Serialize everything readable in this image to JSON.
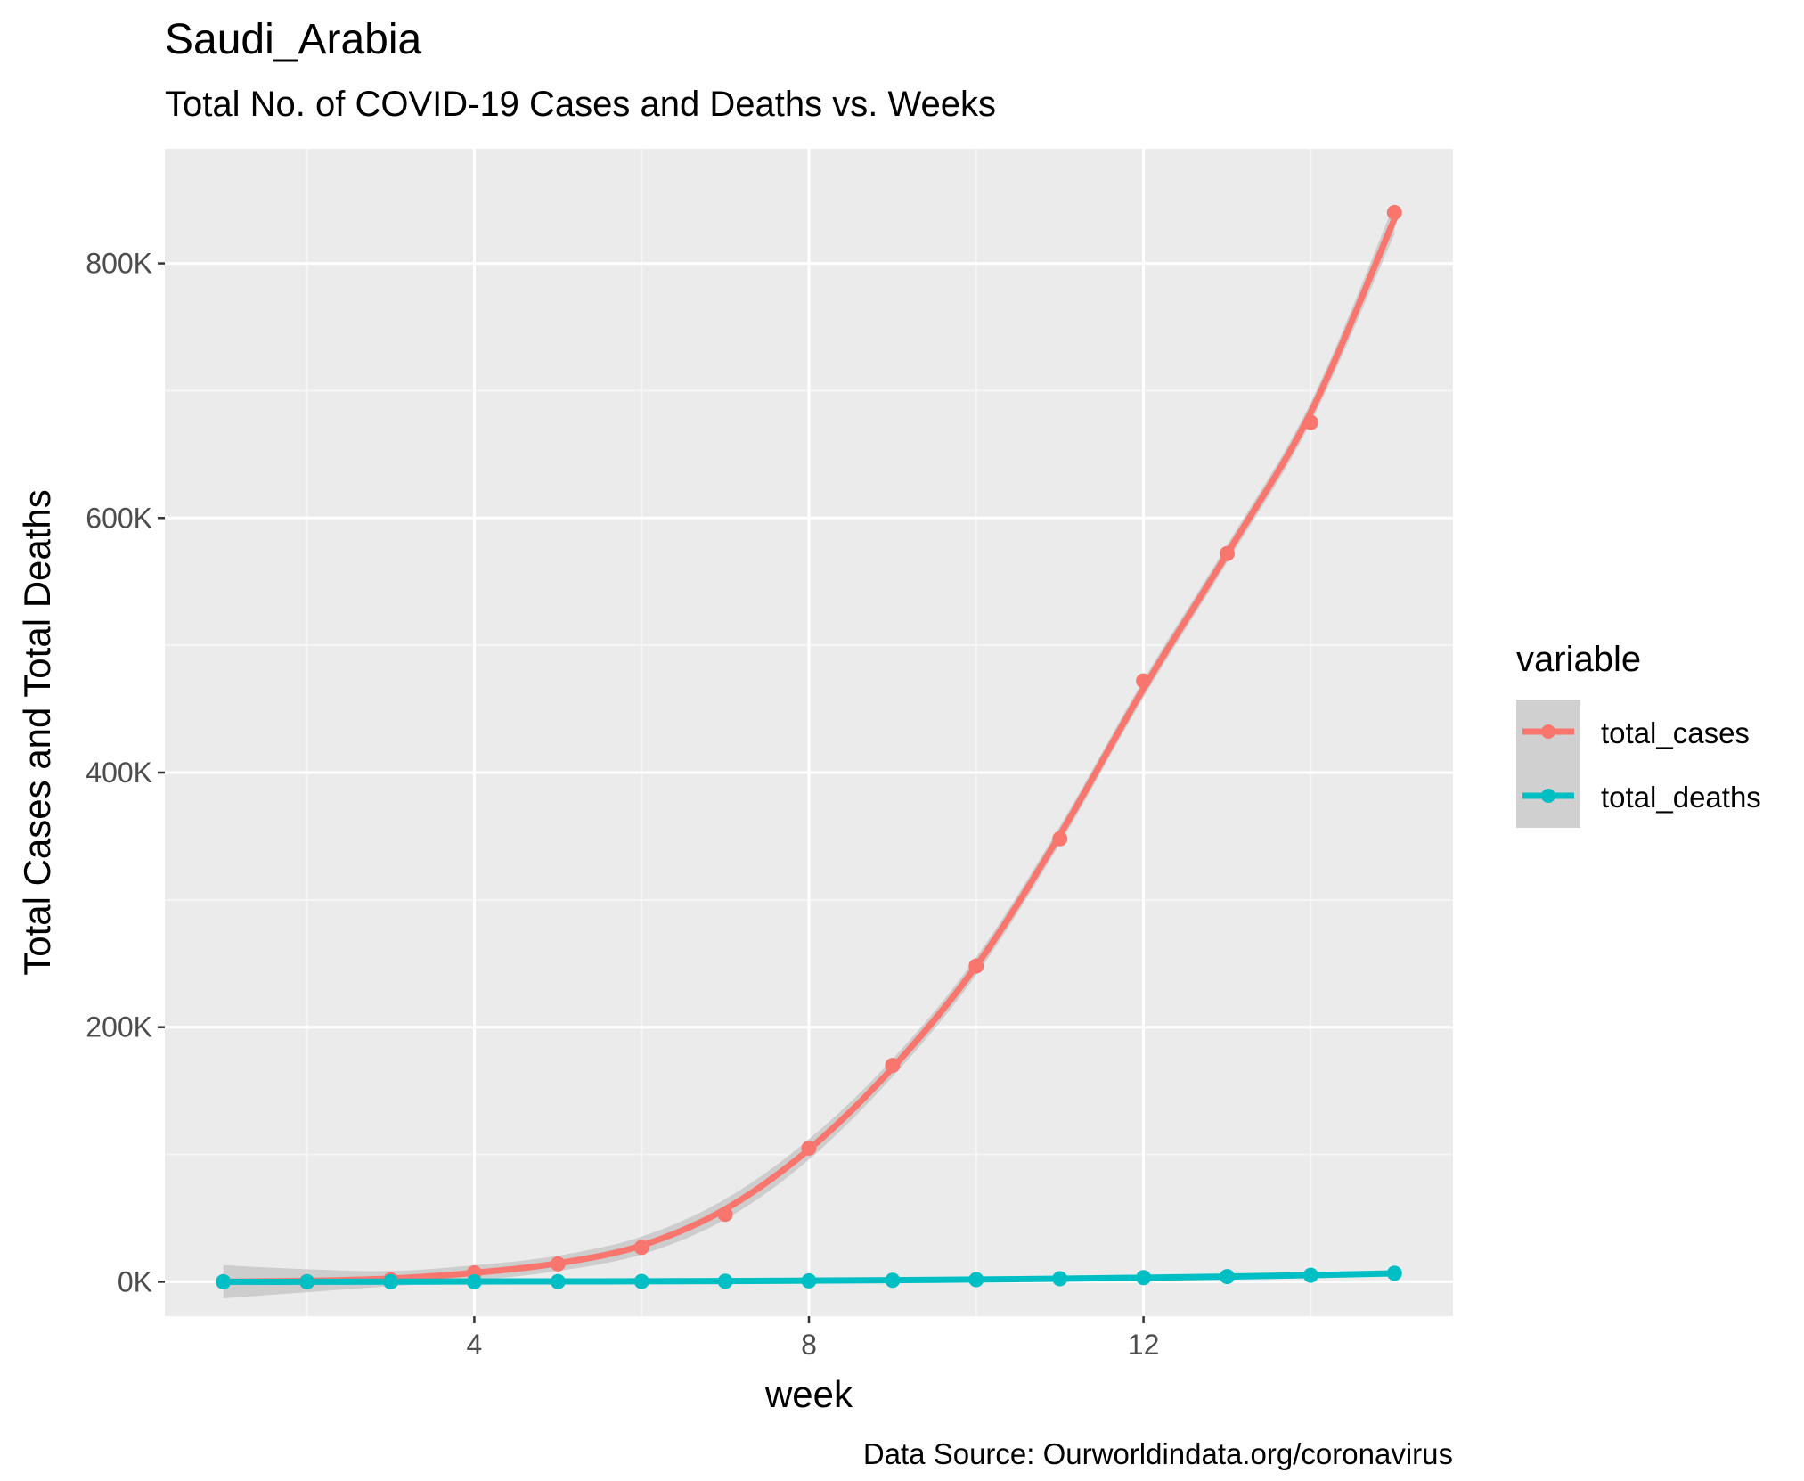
{
  "chart_data": {
    "type": "line",
    "title": "Saudi_Arabia",
    "subtitle": "Total No. of COVID-19 Cases and Deaths vs. Weeks",
    "caption": "Data Source: Ourworldindata.org/coronavirus",
    "xlabel": "week",
    "ylabel": "Total Cases and Total Deaths",
    "xlim": [
      0.3,
      15.7
    ],
    "ylim": [
      -27000,
      890000
    ],
    "x_ticks": [
      4,
      8,
      12
    ],
    "x_tick_labels": [
      "4",
      "8",
      "12"
    ],
    "y_ticks": [
      0,
      200000,
      400000,
      600000,
      800000
    ],
    "y_tick_labels": [
      "0K",
      "200K",
      "400K",
      "600K",
      "800K"
    ],
    "x_minor_ticks": [
      2,
      6,
      10,
      14
    ],
    "y_minor_ticks": [
      100000,
      300000,
      500000,
      700000
    ],
    "grid": true,
    "legend": {
      "title": "variable",
      "position": "right",
      "items": [
        "total_cases",
        "total_deaths"
      ]
    },
    "x": [
      1,
      2,
      3,
      4,
      5,
      6,
      7,
      8,
      9,
      10,
      11,
      12,
      13,
      14,
      15
    ],
    "series": [
      {
        "name": "total_cases",
        "color": "#F8766D",
        "values": [
          0,
          0,
          1500,
          7000,
          14000,
          27000,
          53000,
          105000,
          170000,
          248000,
          348000,
          472000,
          572000,
          675000,
          840000
        ],
        "smooth": [
          0,
          800,
          2500,
          7000,
          14500,
          28500,
          57000,
          104000,
          168000,
          248000,
          351000,
          466000,
          572000,
          683000,
          835000
        ],
        "band_halfwidth": [
          13000,
          9000,
          6000,
          6000,
          6000,
          7000,
          8000,
          8000,
          7000,
          7000,
          7000,
          7000,
          7000,
          8000,
          12000
        ]
      },
      {
        "name": "total_deaths",
        "color": "#00BFC4",
        "values": [
          0,
          0,
          0,
          0,
          100,
          200,
          400,
          700,
          1200,
          1700,
          2400,
          3300,
          4100,
          5100,
          6700
        ],
        "smooth": [
          0,
          0,
          100,
          200,
          300,
          400,
          600,
          900,
          1300,
          1800,
          2400,
          3200,
          4100,
          5200,
          6600
        ]
      }
    ],
    "colors": {
      "panel_background": "#EBEBEB",
      "grid_major": "#FFFFFF",
      "grid_minor": "#F5F5F5",
      "ci_band": "#C8C8C8",
      "legend_key_background": "#D0D0D0",
      "axis_text": "#4D4D4D",
      "title_text": "#000000"
    }
  }
}
